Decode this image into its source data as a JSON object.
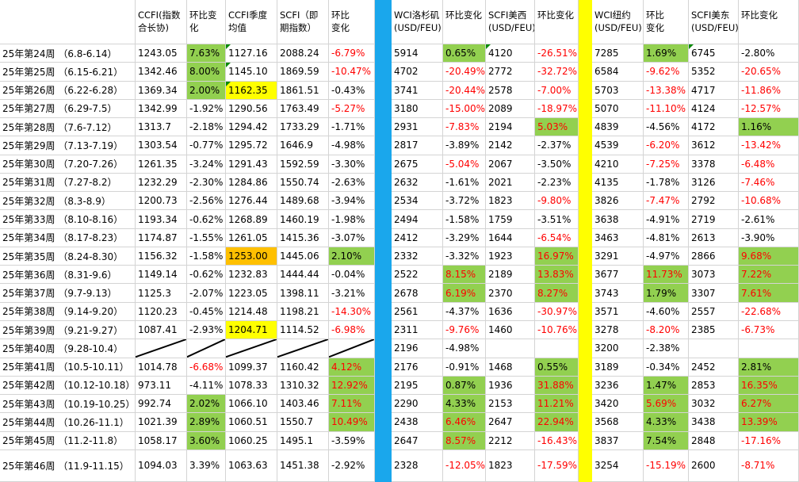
{
  "headers": {
    "week": "",
    "ccfi": "CCFI(指数合长协)",
    "ccfi_chg": "环比变化",
    "ccfi_q": "CCFI季度均值",
    "scfi": "SCFI（即期指数）",
    "scfi_chg": "环比　　变化",
    "wci_la": "WCI洛杉矶(USD/FEU)",
    "wci_la_chg": "环比变化",
    "scfi_usw": "SCFI美西(USD/FEU)",
    "scfi_usw_chg": "环比变化",
    "wci_ny": "WCI纽约(USD/FEU)",
    "wci_ny_chg": "环比　　变化",
    "scfi_use": "SCFI美东(USD/FEU)",
    "scfi_use_chg": "环比变化"
  },
  "colors": {
    "green": "#92d050",
    "yellow": "#ffff00",
    "orange": "#ffc000",
    "blue_divider": "#1aa7ec",
    "negative_text": "#ff0000"
  },
  "rows": [
    {
      "week": "25年第24周 （6.8-6.14）",
      "ccfi": "1243.05",
      "ccfi_chg": "7.63%",
      "ccfi_q": "1127.16",
      "scfi": "2088.24",
      "scfi_chg": "-6.79%",
      "wci_la": "5914",
      "wci_la_chg": "0.65%",
      "scfi_usw": "4120",
      "scfi_usw_chg": "-26.51%",
      "wci_ny": "7285",
      "wci_ny_chg": "1.69%",
      "scfi_use": "6745",
      "scfi_use_chg": "-2.80%"
    },
    {
      "week": "25年第25周 （6.15-6.21）",
      "ccfi": "1342.46",
      "ccfi_chg": "8.00%",
      "ccfi_q": "1145.10",
      "scfi": "1869.59",
      "scfi_chg": "-10.47%",
      "wci_la": "4702",
      "wci_la_chg": "-20.49%",
      "scfi_usw": "2772",
      "scfi_usw_chg": "-32.72%",
      "wci_ny": "6584",
      "wci_ny_chg": "-9.62%",
      "scfi_use": "5352",
      "scfi_use_chg": "-20.65%"
    },
    {
      "week": "25年第26周 （6.22-6.28）",
      "ccfi": "1369.34",
      "ccfi_chg": "2.00%",
      "ccfi_q": "1162.35",
      "scfi": "1861.51",
      "scfi_chg": "-0.43%",
      "wci_la": "3741",
      "wci_la_chg": "-20.44%",
      "scfi_usw": "2578",
      "scfi_usw_chg": "-7.00%",
      "wci_ny": "5703",
      "wci_ny_chg": "-13.38%",
      "scfi_use": "4717",
      "scfi_use_chg": "-11.86%"
    },
    {
      "week": "25年第27周 （6.29-7.5）",
      "ccfi": "1342.99",
      "ccfi_chg": "-1.92%",
      "ccfi_q": "1290.56",
      "scfi": "1763.49",
      "scfi_chg": "-5.27%",
      "wci_la": "3180",
      "wci_la_chg": "-15.00%",
      "scfi_usw": "2089",
      "scfi_usw_chg": "-18.97%",
      "wci_ny": "5070",
      "wci_ny_chg": "-11.10%",
      "scfi_use": "4124",
      "scfi_use_chg": "-12.57%"
    },
    {
      "week": "25年第28周 （7.6-7.12）",
      "ccfi": "1313.7",
      "ccfi_chg": "-2.18%",
      "ccfi_q": "1294.42",
      "scfi": "1733.29",
      "scfi_chg": "-1.71%",
      "wci_la": "2931",
      "wci_la_chg": "-7.83%",
      "scfi_usw": "2194",
      "scfi_usw_chg": "5.03%",
      "wci_ny": "4839",
      "wci_ny_chg": "-4.56%",
      "scfi_use": "4172",
      "scfi_use_chg": "1.16%"
    },
    {
      "week": "25年第29周 （7.13-7.19）",
      "ccfi": "1303.54",
      "ccfi_chg": "-0.77%",
      "ccfi_q": "1295.72",
      "scfi": "1646.9",
      "scfi_chg": "-4.98%",
      "wci_la": "2817",
      "wci_la_chg": "-3.89%",
      "scfi_usw": "2142",
      "scfi_usw_chg": "-2.37%",
      "wci_ny": "4539",
      "wci_ny_chg": "-6.20%",
      "scfi_use": "3612",
      "scfi_use_chg": "-13.42%"
    },
    {
      "week": "25年第30周 （7.20-7.26）",
      "ccfi": "1261.35",
      "ccfi_chg": "-3.24%",
      "ccfi_q": "1291.43",
      "scfi": "1592.59",
      "scfi_chg": "-3.30%",
      "wci_la": "2675",
      "wci_la_chg": "-5.04%",
      "scfi_usw": "2067",
      "scfi_usw_chg": "-3.50%",
      "wci_ny": "4210",
      "wci_ny_chg": "-7.25%",
      "scfi_use": "3378",
      "scfi_use_chg": "-6.48%"
    },
    {
      "week": "25年第31周 （7.27-8.2）",
      "ccfi": "1232.29",
      "ccfi_chg": "-2.30%",
      "ccfi_q": "1284.86",
      "scfi": "1550.74",
      "scfi_chg": "-2.63%",
      "wci_la": "2632",
      "wci_la_chg": "-1.61%",
      "scfi_usw": "2021",
      "scfi_usw_chg": "-2.23%",
      "wci_ny": "4135",
      "wci_ny_chg": "-1.78%",
      "scfi_use": "3126",
      "scfi_use_chg": "-7.46%"
    },
    {
      "week": "25年第32周 （8.3-8.9）",
      "ccfi": "1200.73",
      "ccfi_chg": "-2.56%",
      "ccfi_q": "1276.44",
      "scfi": "1489.68",
      "scfi_chg": "-3.94%",
      "wci_la": "2534",
      "wci_la_chg": "-3.72%",
      "scfi_usw": "1823",
      "scfi_usw_chg": "-9.80%",
      "wci_ny": "3826",
      "wci_ny_chg": "-7.47%",
      "scfi_use": "2792",
      "scfi_use_chg": "-10.68%"
    },
    {
      "week": "25年第33周 （8.10-8.16）",
      "ccfi": "1193.34",
      "ccfi_chg": "-0.62%",
      "ccfi_q": "1268.89",
      "scfi": "1460.19",
      "scfi_chg": "-1.98%",
      "wci_la": "2494",
      "wci_la_chg": "-1.58%",
      "scfi_usw": "1759",
      "scfi_usw_chg": "-3.51%",
      "wci_ny": "3638",
      "wci_ny_chg": "-4.91%",
      "scfi_use": "2719",
      "scfi_use_chg": "-2.61%"
    },
    {
      "week": "25年第34周 （8.17-8.23）",
      "ccfi": "1174.87",
      "ccfi_chg": "-1.55%",
      "ccfi_q": "1261.05",
      "scfi": "1415.36",
      "scfi_chg": "-3.07%",
      "wci_la": "2412",
      "wci_la_chg": "-3.29%",
      "scfi_usw": "1644",
      "scfi_usw_chg": "-6.54%",
      "wci_ny": "3463",
      "wci_ny_chg": "-4.81%",
      "scfi_use": "2613",
      "scfi_use_chg": "-3.90%"
    },
    {
      "week": "25年第35周 （8.24-8.30）",
      "ccfi": "1156.32",
      "ccfi_chg": "-1.58%",
      "ccfi_q": "1253.00",
      "scfi": "1445.06",
      "scfi_chg": "2.10%",
      "wci_la": "2332",
      "wci_la_chg": "-3.32%",
      "scfi_usw": "1923",
      "scfi_usw_chg": "16.97%",
      "wci_ny": "3291",
      "wci_ny_chg": "-4.97%",
      "scfi_use": "2866",
      "scfi_use_chg": "9.68%"
    },
    {
      "week": "25年第36周 （8.31-9.6）",
      "ccfi": "1149.14",
      "ccfi_chg": "-0.62%",
      "ccfi_q": "1232.83",
      "scfi": "1444.44",
      "scfi_chg": "-0.04%",
      "wci_la": "2522",
      "wci_la_chg": "8.15%",
      "scfi_usw": "2189",
      "scfi_usw_chg": "13.83%",
      "wci_ny": "3677",
      "wci_ny_chg": "11.73%",
      "scfi_use": "3073",
      "scfi_use_chg": "7.22%"
    },
    {
      "week": "25年第37周 （9.7-9.13）",
      "ccfi": "1125.3",
      "ccfi_chg": "-2.07%",
      "ccfi_q": "1223.05",
      "scfi": "1398.11",
      "scfi_chg": "-3.21%",
      "wci_la": "2678",
      "wci_la_chg": "6.19%",
      "scfi_usw": "2370",
      "scfi_usw_chg": "8.27%",
      "wci_ny": "3743",
      "wci_ny_chg": "1.79%",
      "scfi_use": "3307",
      "scfi_use_chg": "7.61%"
    },
    {
      "week": "25年第38周 （9.14-9.20）",
      "ccfi": "1120.23",
      "ccfi_chg": "-0.45%",
      "ccfi_q": "1214.48",
      "scfi": "1198.21",
      "scfi_chg": "-14.30%",
      "wci_la": "2561",
      "wci_la_chg": "-4.37%",
      "scfi_usw": "1636",
      "scfi_usw_chg": "-30.97%",
      "wci_ny": "3571",
      "wci_ny_chg": "-4.60%",
      "scfi_use": "2557",
      "scfi_use_chg": "-22.68%"
    },
    {
      "week": "25年第39周 （9.21-9.27）",
      "ccfi": "1087.41",
      "ccfi_chg": "-2.93%",
      "ccfi_q": "1204.71",
      "scfi": "1114.52",
      "scfi_chg": "-6.98%",
      "wci_la": "2311",
      "wci_la_chg": "-9.76%",
      "scfi_usw": "1460",
      "scfi_usw_chg": "-10.76%",
      "wci_ny": "3278",
      "wci_ny_chg": "-8.20%",
      "scfi_use": "2385",
      "scfi_use_chg": "-6.73%"
    },
    {
      "week": "25年第40周 （9.28-10.4）",
      "ccfi": "",
      "ccfi_chg": "",
      "ccfi_q": "",
      "scfi": "",
      "scfi_chg": "",
      "wci_la": "2196",
      "wci_la_chg": "-4.98%",
      "scfi_usw": "",
      "scfi_usw_chg": "",
      "wci_ny": "3200",
      "wci_ny_chg": "-2.38%",
      "scfi_use": "",
      "scfi_use_chg": ""
    },
    {
      "week": "25年第41周 （10.5-10.11）",
      "ccfi": "1014.78",
      "ccfi_chg": "-6.68%",
      "ccfi_q": "1099.37",
      "scfi": "1160.42",
      "scfi_chg": "4.12%",
      "wci_la": "2176",
      "wci_la_chg": "-0.91%",
      "scfi_usw": "1468",
      "scfi_usw_chg": "0.55%",
      "wci_ny": "3189",
      "wci_ny_chg": "-0.34%",
      "scfi_use": "2452",
      "scfi_use_chg": "2.81%"
    },
    {
      "week": "25年第42周 （10.12-10.18）",
      "ccfi": "973.11",
      "ccfi_chg": "-4.11%",
      "ccfi_q": "1078.33",
      "scfi": "1310.32",
      "scfi_chg": "12.92%",
      "wci_la": "2195",
      "wci_la_chg": "0.87%",
      "scfi_usw": "1936",
      "scfi_usw_chg": "31.88%",
      "wci_ny": "3236",
      "wci_ny_chg": "1.47%",
      "scfi_use": "2853",
      "scfi_use_chg": "16.35%"
    },
    {
      "week": "25年第43周 （10.19-10.25）",
      "ccfi": "992.74",
      "ccfi_chg": "2.02%",
      "ccfi_q": "1066.10",
      "scfi": "1403.46",
      "scfi_chg": "7.11%",
      "wci_la": "2290",
      "wci_la_chg": "4.33%",
      "scfi_usw": "2153",
      "scfi_usw_chg": "11.21%",
      "wci_ny": "3420",
      "wci_ny_chg": "5.69%",
      "scfi_use": "3032",
      "scfi_use_chg": "6.27%"
    },
    {
      "week": "25年第44周 （10.26-11.1）",
      "ccfi": "1021.39",
      "ccfi_chg": "2.89%",
      "ccfi_q": "1060.51",
      "scfi": "1550.7",
      "scfi_chg": "10.49%",
      "wci_la": "2438",
      "wci_la_chg": "6.46%",
      "scfi_usw": "2647",
      "scfi_usw_chg": "22.94%",
      "wci_ny": "3568",
      "wci_ny_chg": "4.33%",
      "scfi_use": "3438",
      "scfi_use_chg": "13.39%"
    },
    {
      "week": "25年第45周 （11.2-11.8）",
      "ccfi": "1058.17",
      "ccfi_chg": "3.60%",
      "ccfi_q": "1060.25",
      "scfi": "1495.1",
      "scfi_chg": "-3.59%",
      "wci_la": "2647",
      "wci_la_chg": "8.57%",
      "scfi_usw": "2212",
      "scfi_usw_chg": "-16.43%",
      "wci_ny": "3837",
      "wci_ny_chg": "7.54%",
      "scfi_use": "2848",
      "scfi_use_chg": "-17.16%"
    },
    {
      "week": "25年第46周 （11.9-11.15）",
      "ccfi": "1094.03",
      "ccfi_chg": "3.39%",
      "ccfi_q": "1063.63",
      "scfi": "1451.38",
      "scfi_chg": "-2.92%",
      "wci_la": "2328",
      "wci_la_chg": "-12.05%",
      "scfi_usw": "1823",
      "scfi_usw_chg": "-17.59%",
      "wci_ny": "3254",
      "wci_ny_chg": "-15.19%",
      "scfi_use": "2600",
      "scfi_use_chg": "-8.71%"
    }
  ]
}
